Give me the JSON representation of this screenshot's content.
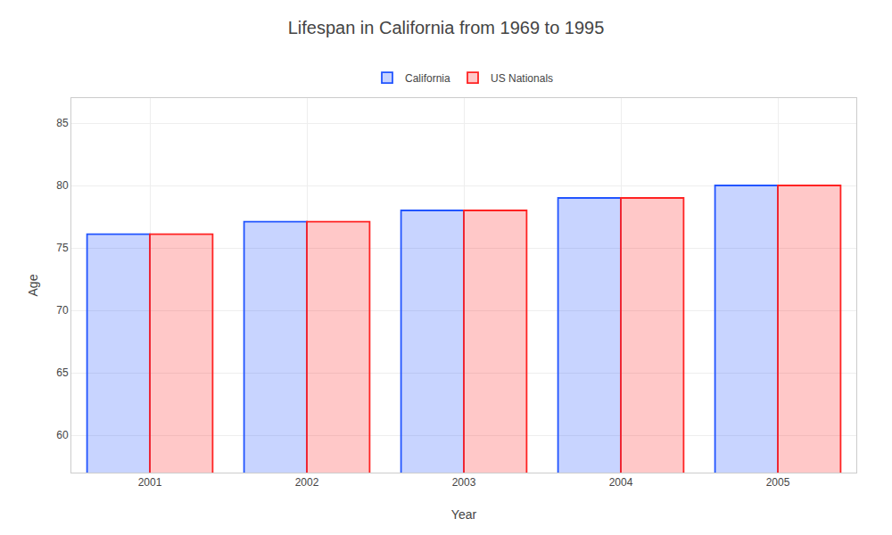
{
  "chart_data": {
    "type": "bar",
    "title": "Lifespan in California from 1969 to 1995",
    "xlabel": "Year",
    "ylabel": "Age",
    "categories": [
      "2001",
      "2002",
      "2003",
      "2004",
      "2005"
    ],
    "series": [
      {
        "name": "California",
        "color": "#2255ff",
        "values": [
          76.1,
          77.1,
          78.0,
          79.0,
          80.0
        ]
      },
      {
        "name": "US Nationals",
        "color": "#ff2222",
        "values": [
          76.1,
          77.1,
          78.0,
          79.0,
          80.0
        ]
      }
    ],
    "ylim": [
      57,
      87
    ],
    "yticks": [
      60,
      65,
      70,
      75,
      80,
      85
    ],
    "grid": true,
    "legend": "top"
  }
}
